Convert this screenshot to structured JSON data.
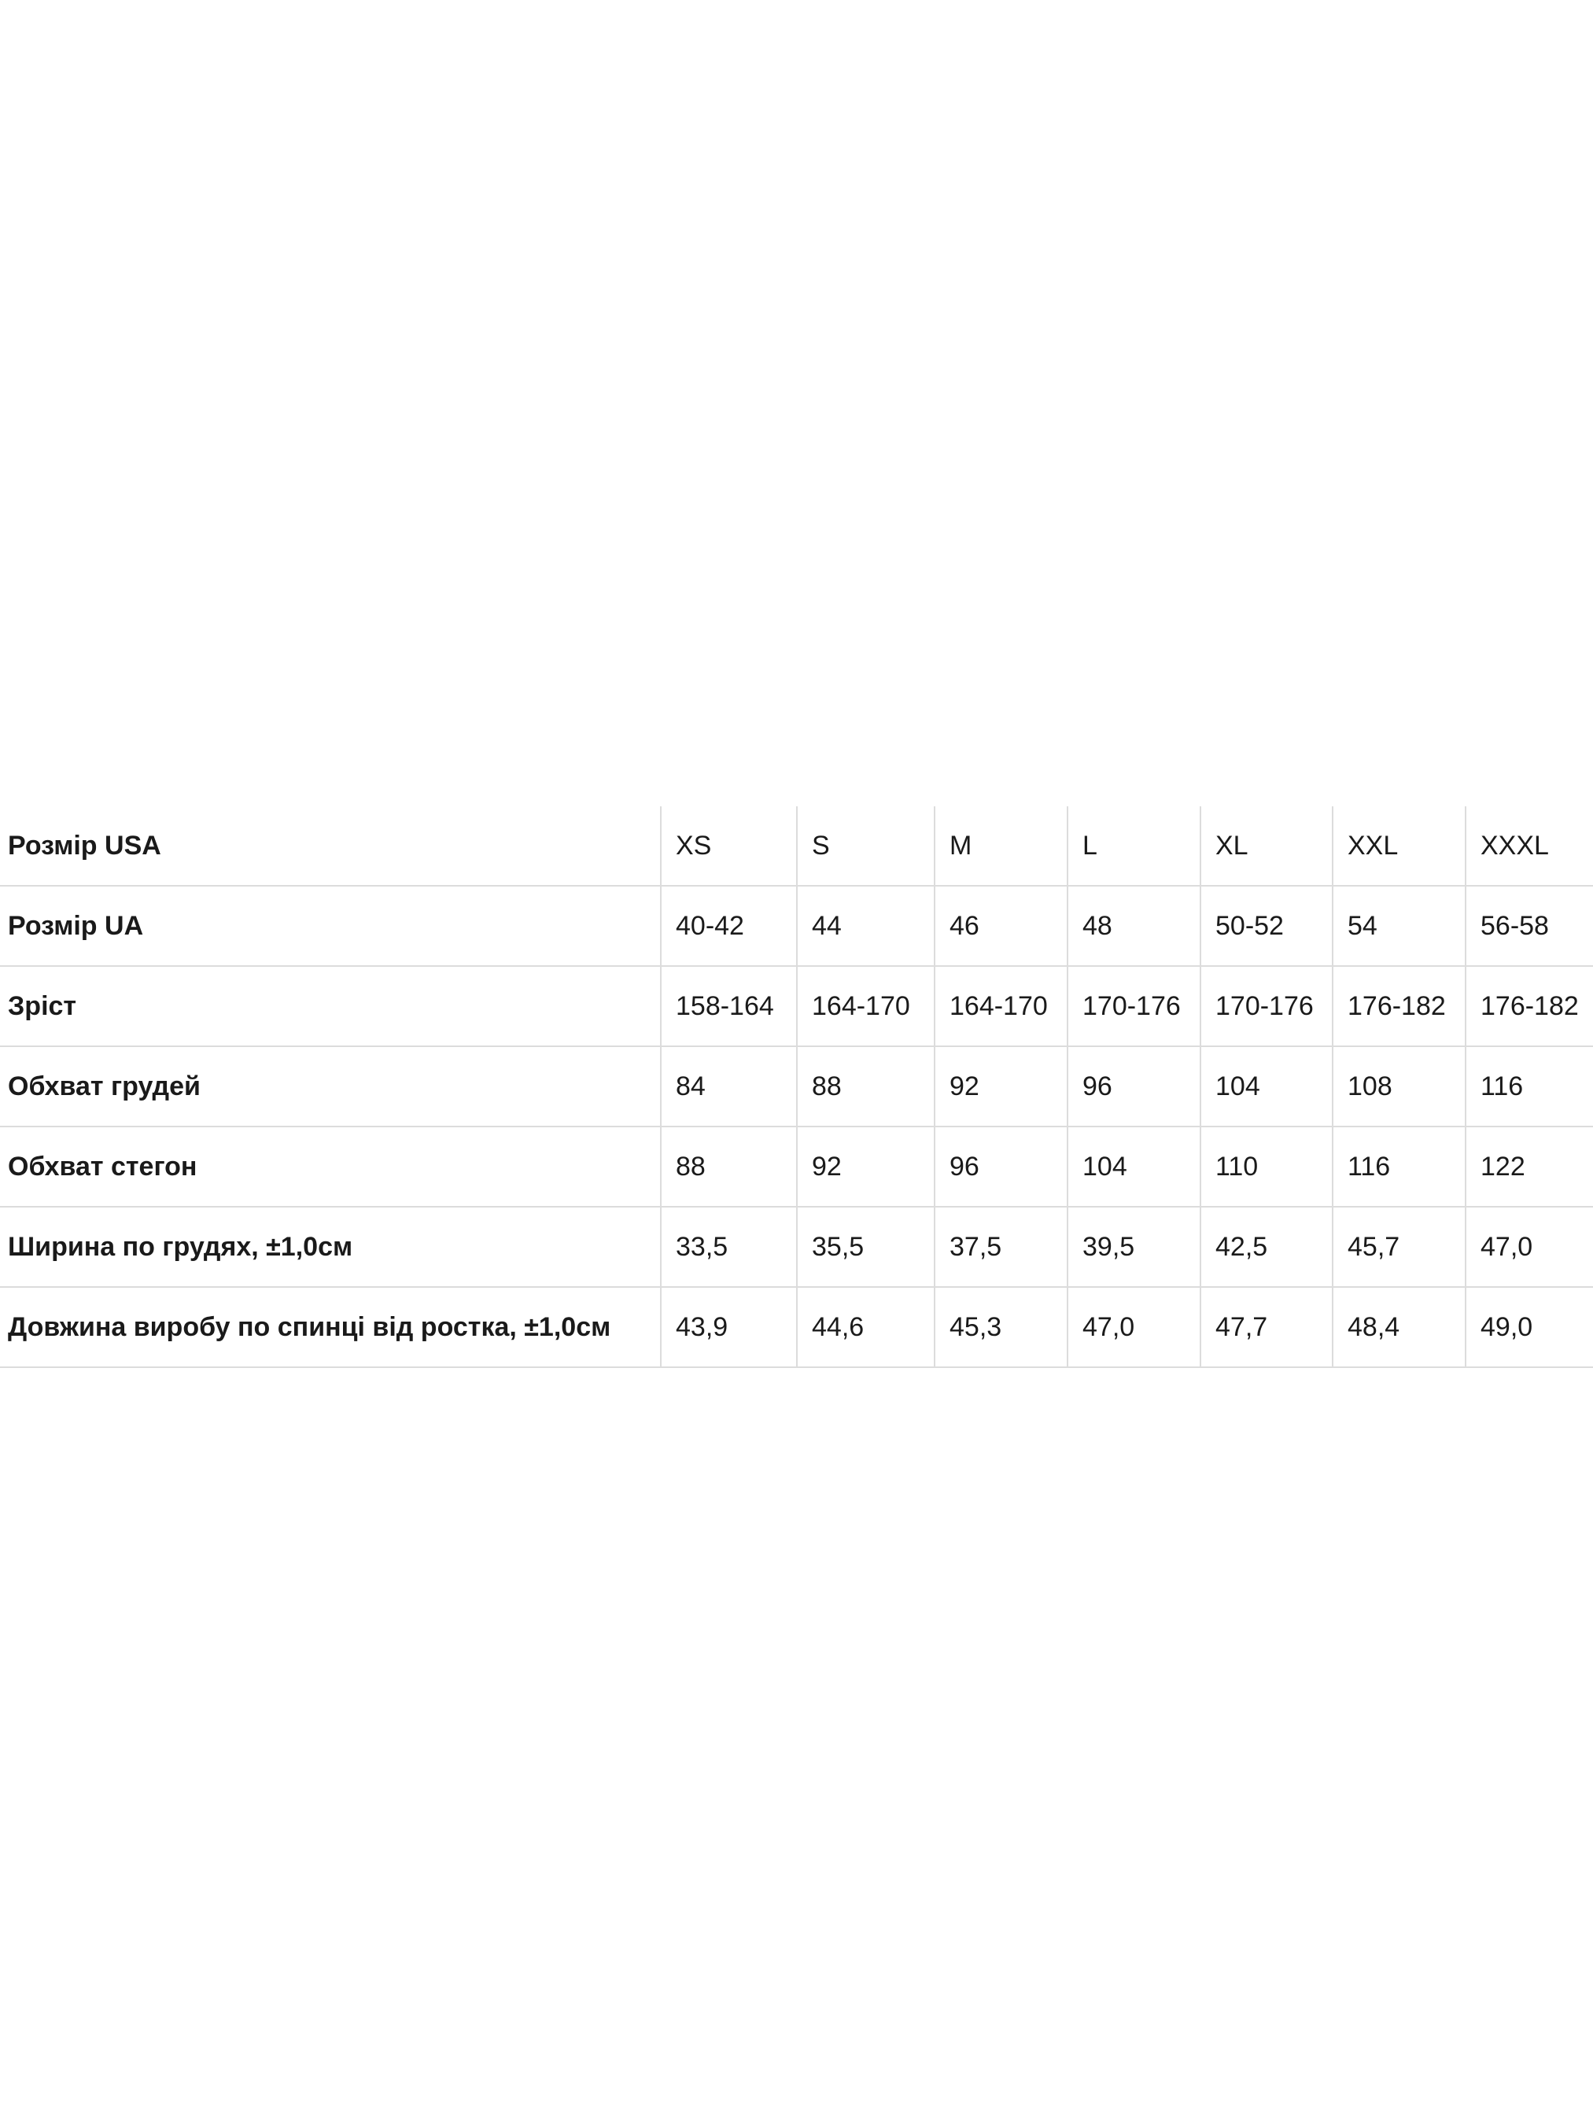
{
  "size_table": {
    "rows": [
      {
        "label": "Розмір USA",
        "values": [
          "XS",
          "S",
          "M",
          "L",
          "XL",
          "XXL",
          "XXXL"
        ]
      },
      {
        "label": "Розмір UA",
        "values": [
          "40-42",
          "44",
          "46",
          "48",
          "50-52",
          "54",
          "56-58"
        ]
      },
      {
        "label": "Зріст",
        "values": [
          "158-164",
          "164-170",
          "164-170",
          "170-176",
          "170-176",
          "176-182",
          "176-182"
        ]
      },
      {
        "label": "Обхват грудей",
        "values": [
          "84",
          "88",
          "92",
          "96",
          "104",
          "108",
          "116"
        ]
      },
      {
        "label": "Обхват стегон",
        "values": [
          "88",
          "92",
          "96",
          "104",
          "110",
          "116",
          "122"
        ]
      },
      {
        "label": "Ширина по грудях, ±1,0см",
        "values": [
          "33,5",
          "35,5",
          "37,5",
          "39,5",
          "42,5",
          "45,7",
          "47,0"
        ]
      },
      {
        "label": "Довжина виробу по спинці від ростка, ±1,0см",
        "values": [
          "43,9",
          "44,6",
          "45,3",
          "47,0",
          "47,7",
          "48,4",
          "49,0"
        ]
      }
    ]
  }
}
